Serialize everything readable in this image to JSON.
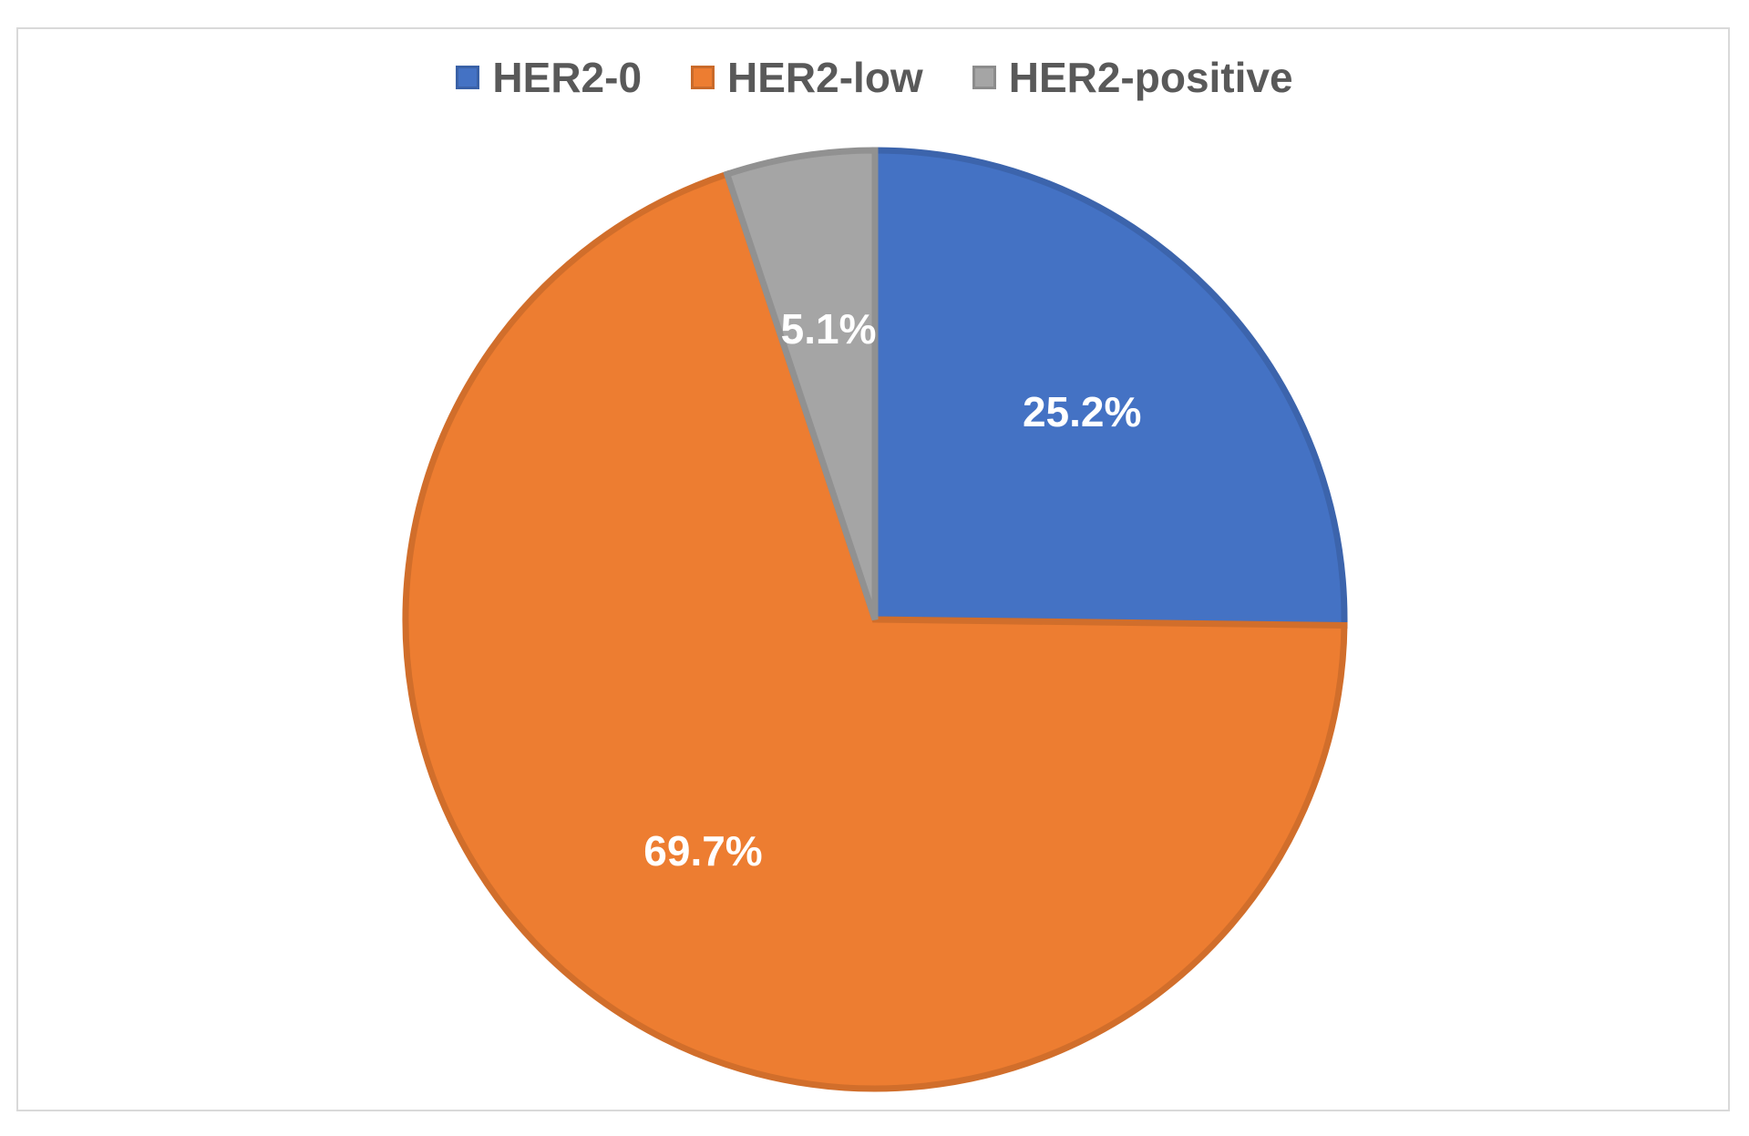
{
  "chart_data": {
    "type": "pie",
    "title": "",
    "categories": [
      "HER2-0",
      "HER2-low",
      "HER2-positive"
    ],
    "values": [
      25.2,
      69.7,
      5.1
    ],
    "data_labels": [
      "25.2%",
      "69.7%",
      "5.1%"
    ],
    "colors": [
      "#4472C4",
      "#ED7D31",
      "#A5A5A5"
    ],
    "legend_position": "top",
    "start_angle_deg": 0,
    "direction": "clockwise"
  }
}
